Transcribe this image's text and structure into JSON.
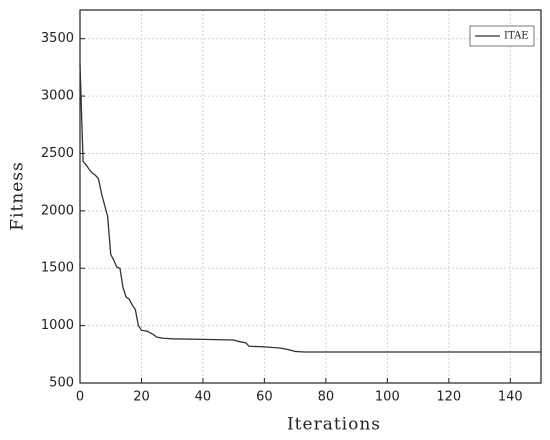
{
  "chart_data": {
    "type": "line",
    "x_label": "Iterations",
    "y_label": "Fitness",
    "x": [
      0,
      1,
      2,
      3,
      4,
      5,
      6,
      7,
      8,
      9,
      10,
      11,
      12,
      13,
      14,
      15,
      16,
      17,
      18,
      19,
      20,
      22,
      24,
      25,
      27,
      30,
      40,
      50,
      52,
      54,
      55,
      60,
      65,
      68,
      70,
      73,
      150
    ],
    "series": [
      {
        "name": "ITAE",
        "color": "#333333",
        "values": [
          3280,
          2430,
          2400,
          2360,
          2330,
          2310,
          2280,
          2150,
          2050,
          1950,
          1620,
          1570,
          1510,
          1500,
          1330,
          1250,
          1230,
          1180,
          1140,
          1000,
          960,
          950,
          920,
          900,
          890,
          885,
          880,
          875,
          860,
          850,
          820,
          815,
          805,
          790,
          775,
          770,
          770
        ]
      }
    ],
    "xlim": [
      0,
      150
    ],
    "xticks": [
      0,
      20,
      40,
      60,
      80,
      100,
      120,
      140
    ],
    "ylim": [
      500,
      3750
    ],
    "yticks": [
      500,
      1000,
      1500,
      2000,
      2500,
      3000,
      3500
    ],
    "grid": true,
    "legend": "upper right"
  }
}
